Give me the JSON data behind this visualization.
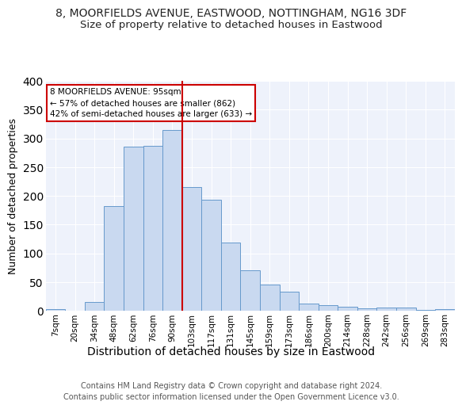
{
  "title1": "8, MOORFIELDS AVENUE, EASTWOOD, NOTTINGHAM, NG16 3DF",
  "title2": "Size of property relative to detached houses in Eastwood",
  "xlabel": "Distribution of detached houses by size in Eastwood",
  "ylabel": "Number of detached properties",
  "categories": [
    "7sqm",
    "20sqm",
    "34sqm",
    "48sqm",
    "62sqm",
    "76sqm",
    "90sqm",
    "103sqm",
    "117sqm",
    "131sqm",
    "145sqm",
    "159sqm",
    "173sqm",
    "186sqm",
    "200sqm",
    "214sqm",
    "228sqm",
    "242sqm",
    "256sqm",
    "269sqm",
    "283sqm"
  ],
  "values": [
    3,
    0,
    15,
    182,
    285,
    287,
    315,
    215,
    193,
    118,
    70,
    45,
    33,
    12,
    9,
    7,
    4,
    6,
    5,
    2,
    3
  ],
  "bar_color": "#c9d9f0",
  "bar_edge_color": "#6699cc",
  "vline_x_index": 7,
  "annotation_title": "8 MOORFIELDS AVENUE: 95sqm",
  "annotation_line1": "← 57% of detached houses are smaller (862)",
  "annotation_line2": "42% of semi-detached houses are larger (633) →",
  "annotation_box_color": "#ffffff",
  "annotation_box_edge": "#cc0000",
  "vline_color": "#cc0000",
  "ylim": [
    0,
    400
  ],
  "yticks": [
    0,
    50,
    100,
    150,
    200,
    250,
    300,
    350,
    400
  ],
  "bg_color": "#eef2fb",
  "grid_color": "#ffffff",
  "footer": "Contains HM Land Registry data © Crown copyright and database right 2024.\nContains public sector information licensed under the Open Government Licence v3.0.",
  "title1_fontsize": 10,
  "title2_fontsize": 9.5,
  "xlabel_fontsize": 10,
  "ylabel_fontsize": 9,
  "tick_fontsize": 7.5,
  "footer_fontsize": 7
}
